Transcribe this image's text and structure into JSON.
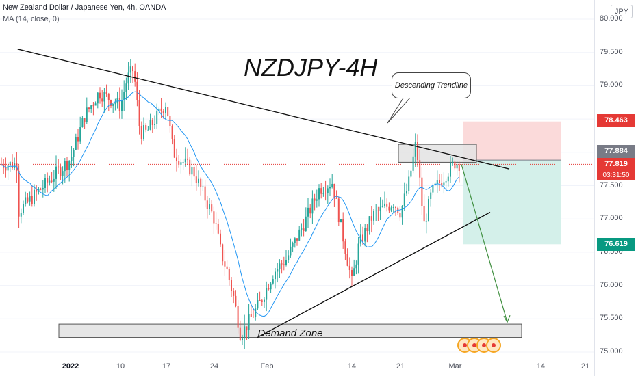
{
  "header": {
    "symbol_line": "New Zealand Dollar / Japanese Yen, 4h, OANDA",
    "indicator_line": "MA (14, close, 0)"
  },
  "annotations": {
    "title": "NZDJPY-4H",
    "callout": "Descending Trendline",
    "demand_zone": "Demand Zone"
  },
  "price_axis": {
    "currency_button": "JPY",
    "ticks": [
      "80.000",
      "79.500",
      "79.000",
      "78.500",
      "78.000",
      "77.500",
      "77.000",
      "76.500",
      "76.000",
      "75.500",
      "75.000"
    ],
    "stop_loss_label": "78.463",
    "entry_label": "77.884",
    "last_price_label": "77.819",
    "countdown_label": "03:31:50",
    "take_profit_label": "76.619"
  },
  "time_axis": {
    "ticks": [
      {
        "label": "2022",
        "bold": true
      },
      {
        "label": "10",
        "bold": false
      },
      {
        "label": "17",
        "bold": false
      },
      {
        "label": "24",
        "bold": false
      },
      {
        "label": "Feb",
        "bold": false
      },
      {
        "label": "14",
        "bold": false
      },
      {
        "label": "21",
        "bold": false
      },
      {
        "label": "Mar",
        "bold": false
      },
      {
        "label": "14",
        "bold": false
      },
      {
        "label": "21",
        "bold": false
      }
    ]
  },
  "colors": {
    "up": "#26a69a",
    "down": "#ef5350",
    "ma": "#2196f3",
    "stop_zone": "#fbdada",
    "profit_zone": "#d4f0ea",
    "entry_box": "#787b86",
    "last_box": "#e53935",
    "target_box": "#089981",
    "stop_box": "#e53935"
  },
  "chart_data": {
    "type": "candlestick",
    "symbol": "NZDJPY",
    "interval": "4h",
    "ylim": [
      75.0,
      80.0
    ],
    "price_path": [
      {
        "x": "Dec 31",
        "price": 77.1
      },
      {
        "x": "Jan 3",
        "price": 77.9
      },
      {
        "x": "Jan 5",
        "price": 78.55
      },
      {
        "x": "Jan 7",
        "price": 78.9
      },
      {
        "x": "Jan 10",
        "price": 78.7
      },
      {
        "x": "Jan 11",
        "price": 79.1
      },
      {
        "x": "Jan 12",
        "price": 79.25
      },
      {
        "x": "Jan 13",
        "price": 78.3
      },
      {
        "x": "Jan 14",
        "price": 78.3
      },
      {
        "x": "Jan 17",
        "price": 78.75
      },
      {
        "x": "Jan 18",
        "price": 78.0
      },
      {
        "x": "Jan 20",
        "price": 77.8
      },
      {
        "x": "Jan 21",
        "price": 77.7
      },
      {
        "x": "Jan 24",
        "price": 77.0
      },
      {
        "x": "Jan 25",
        "price": 76.5
      },
      {
        "x": "Jan 26",
        "price": 76.2
      },
      {
        "x": "Jan 27",
        "price": 75.8
      },
      {
        "x": "Jan 28",
        "price": 75.25
      },
      {
        "x": "Jan 31",
        "price": 75.75
      },
      {
        "x": "Feb 2",
        "price": 76.2
      },
      {
        "x": "Feb 4",
        "price": 76.4
      },
      {
        "x": "Feb 7",
        "price": 77.0
      },
      {
        "x": "Feb 9",
        "price": 77.45
      },
      {
        "x": "Feb 11",
        "price": 77.55
      },
      {
        "x": "Feb 14",
        "price": 76.05
      },
      {
        "x": "Feb 15",
        "price": 76.6
      },
      {
        "x": "Feb 17",
        "price": 77.05
      },
      {
        "x": "Feb 20",
        "price": 77.25
      },
      {
        "x": "Feb 21",
        "price": 77.1
      },
      {
        "x": "Feb 22",
        "price": 77.5
      },
      {
        "x": "Feb 23",
        "price": 78.15
      },
      {
        "x": "Feb 24",
        "price": 76.9
      },
      {
        "x": "Feb 25",
        "price": 77.4
      },
      {
        "x": "Feb 28",
        "price": 77.85
      },
      {
        "x": "Mar 1",
        "price": 77.82
      }
    ],
    "levels": {
      "stop_loss": 78.463,
      "entry": 77.884,
      "last_price": 77.819,
      "take_profit": 76.619
    },
    "demand_zone": [
      75.22,
      75.42
    ],
    "resistance_box": [
      77.85,
      78.12
    ],
    "descending_trendline": [
      {
        "x": "Dec 31",
        "price": 79.55
      },
      {
        "x": "Mar 3",
        "price": 77.75
      }
    ],
    "ascending_trendline": [
      {
        "x": "Jan 28",
        "price": 75.22
      },
      {
        "x": "Mar 3",
        "price": 77.1
      }
    ],
    "projection": [
      {
        "x": "Mar 1",
        "price": 77.82
      },
      {
        "x": "Mar 8",
        "price": 75.45
      }
    ],
    "moving_average": {
      "type": "MA",
      "length": 14,
      "source": "close",
      "offset": 0
    }
  }
}
